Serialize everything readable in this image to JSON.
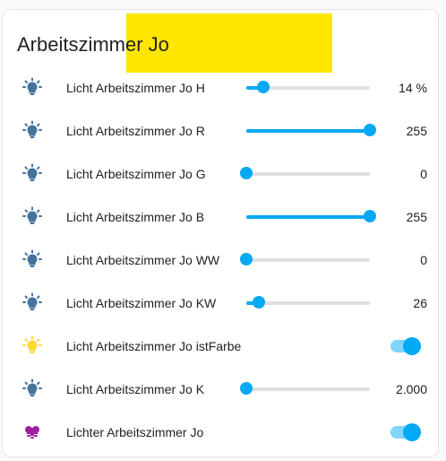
{
  "card": {
    "title": "Arbeitszimmer Jo"
  },
  "colors": {
    "accent": "#03a9f4",
    "icon_off": "#44739e",
    "icon_on": "#fdd835",
    "group_icon": "#a020a0",
    "highlight": "#ffe600"
  },
  "entities": [
    {
      "label": "Licht Arbeitszimmer Jo H",
      "icon": "lightbulb-outline-icon",
      "control": "slider",
      "level": 0.14,
      "value": "14 %"
    },
    {
      "label": "Licht Arbeitszimmer Jo R",
      "icon": "lightbulb-outline-icon",
      "control": "slider",
      "level": 1.0,
      "value": "255"
    },
    {
      "label": "Licht Arbeitszimmer Jo G",
      "icon": "lightbulb-outline-icon",
      "control": "slider",
      "level": 0.0,
      "value": "0"
    },
    {
      "label": "Licht Arbeitszimmer Jo B",
      "icon": "lightbulb-outline-icon",
      "control": "slider",
      "level": 1.0,
      "value": "255"
    },
    {
      "label": "Licht Arbeitszimmer Jo WW",
      "icon": "lightbulb-outline-icon",
      "control": "slider",
      "level": 0.0,
      "value": "0"
    },
    {
      "label": "Licht Arbeitszimmer Jo KW",
      "icon": "lightbulb-outline-icon",
      "control": "slider",
      "level": 0.1,
      "value": "26"
    },
    {
      "label": "Licht Arbeitszimmer Jo istFarbe",
      "icon": "lightbulb-on-icon",
      "control": "toggle",
      "state": "on"
    },
    {
      "label": "Licht Arbeitszimmer Jo K",
      "icon": "lightbulb-outline-icon",
      "control": "slider",
      "level": 0.0,
      "value": "2.000"
    },
    {
      "label": "Lichter Arbeitszimmer Jo",
      "icon": "lightbulb-group-icon",
      "control": "toggle",
      "state": "on"
    }
  ]
}
